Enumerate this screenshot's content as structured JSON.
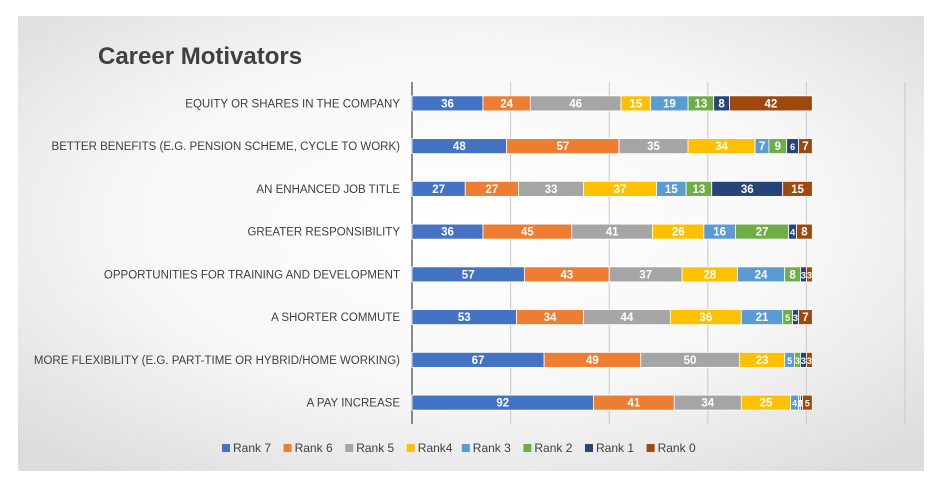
{
  "chart_data": {
    "type": "bar",
    "orientation": "horizontal",
    "stacked": true,
    "title": "Career Motivators",
    "categories": [
      "EQUITY OR SHARES IN THE COMPANY",
      "BETTER BENEFITS (E.G. PENSION SCHEME, CYCLE TO WORK)",
      "AN ENHANCED JOB TITLE",
      "GREATER RESPONSIBILITY",
      "OPPORTUNITIES FOR TRAINING AND DEVELOPMENT",
      "A SHORTER COMMUTE",
      "MORE FLEXIBILITY (E.G. PART-TIME OR HYBRID/HOME WORKING)",
      "A PAY INCREASE"
    ],
    "series": [
      {
        "name": "Rank 7",
        "color": "#4472C4",
        "values": [
          36,
          48,
          27,
          36,
          57,
          53,
          67,
          92
        ]
      },
      {
        "name": "Rank 6",
        "color": "#ED7D31",
        "values": [
          24,
          57,
          27,
          45,
          43,
          34,
          49,
          41
        ]
      },
      {
        "name": "Rank 5",
        "color": "#A5A5A5",
        "values": [
          46,
          35,
          33,
          41,
          37,
          44,
          50,
          34
        ]
      },
      {
        "name": "Rank4",
        "color": "#FFC000",
        "values": [
          15,
          34,
          37,
          26,
          28,
          36,
          23,
          25
        ]
      },
      {
        "name": "Rank 3",
        "color": "#5B9BD5",
        "values": [
          19,
          7,
          15,
          16,
          24,
          21,
          5,
          4
        ]
      },
      {
        "name": "Rank 2",
        "color": "#70AD47",
        "values": [
          13,
          9,
          13,
          27,
          8,
          5,
          3,
          1
        ]
      },
      {
        "name": "Rank 1",
        "color": "#264478",
        "values": [
          8,
          6,
          36,
          4,
          3,
          3,
          3,
          1
        ]
      },
      {
        "name": "Rank 0",
        "color": "#9E480E",
        "values": [
          42,
          7,
          15,
          8,
          3,
          7,
          3,
          5
        ]
      }
    ],
    "xlim": [
      0,
      250
    ],
    "grid": true,
    "legend": "bottom",
    "xlabel": "",
    "ylabel": ""
  }
}
